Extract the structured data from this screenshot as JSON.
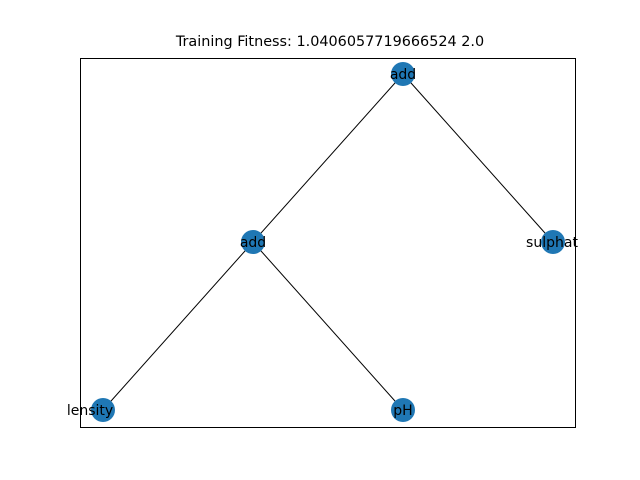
{
  "title": "Training Fitness: 1.0406057719666524 2.0",
  "node_color": "#1f77b4",
  "edge_color": "#000000",
  "nodes": [
    {
      "id": "n0",
      "label": "add"
    },
    {
      "id": "n1",
      "label": "add"
    },
    {
      "id": "n2",
      "label": "sulphat"
    },
    {
      "id": "n3",
      "label": "lensity"
    },
    {
      "id": "n4",
      "label": "pH"
    }
  ],
  "edges": [
    {
      "from": "n0",
      "to": "n1"
    },
    {
      "from": "n0",
      "to": "n2"
    },
    {
      "from": "n1",
      "to": "n3"
    },
    {
      "from": "n1",
      "to": "n4"
    }
  ]
}
